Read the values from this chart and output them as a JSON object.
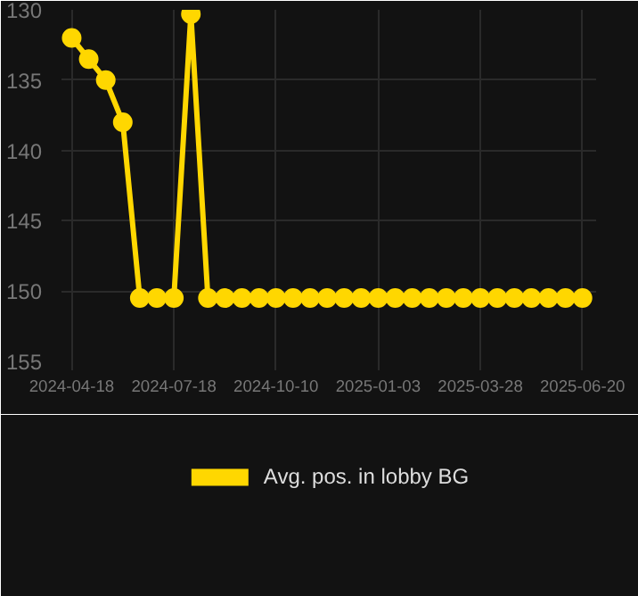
{
  "chart_data": {
    "type": "line",
    "categories": [
      "2024-04-18",
      null,
      null,
      null,
      null,
      null,
      "2024-07-18",
      null,
      null,
      null,
      null,
      null,
      "2024-10-10",
      null,
      null,
      null,
      null,
      null,
      "2025-01-03",
      null,
      null,
      null,
      null,
      null,
      "2025-03-28",
      null,
      null,
      null,
      null,
      null,
      "2025-06-20"
    ],
    "series": [
      {
        "name": "Avg. pos. in lobby BG",
        "color": "#ffd700",
        "values": [
          132,
          133.5,
          135,
          138,
          150.5,
          150.5,
          150.5,
          130.3,
          150.5,
          150.5,
          150.5,
          150.5,
          150.5,
          150.5,
          150.5,
          150.5,
          150.5,
          150.5,
          150.5,
          150.5,
          150.5,
          150.5,
          150.5,
          150.5,
          150.5,
          150.5,
          150.5,
          150.5,
          150.5,
          150.5,
          150.5
        ]
      }
    ],
    "ylim": [
      155,
      130
    ],
    "yticks": [
      130,
      135,
      140,
      145,
      150,
      155
    ],
    "grid": true,
    "legend": "bottom",
    "marker": "circle",
    "line_style": "solid"
  }
}
